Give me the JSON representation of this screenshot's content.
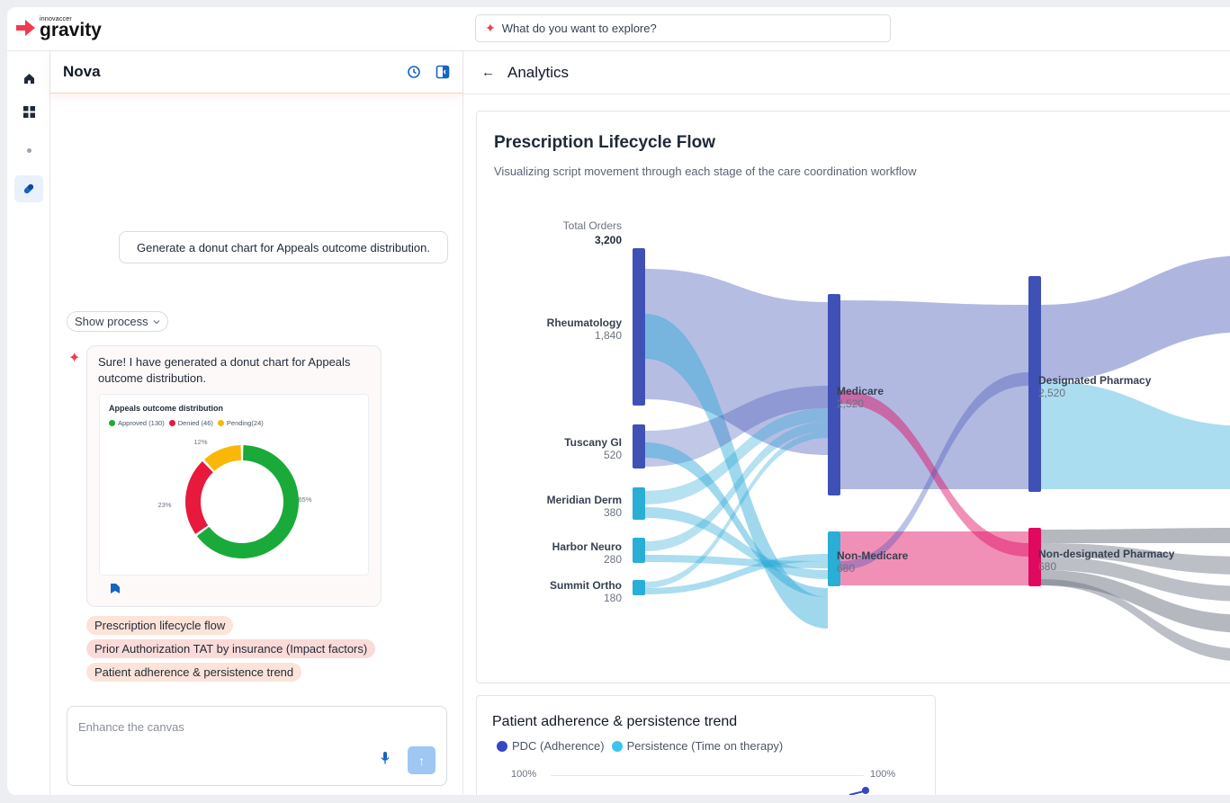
{
  "brand": {
    "small": "innovaccer",
    "name": "gravity"
  },
  "search": {
    "placeholder": "What do you want to explore?"
  },
  "rail": {
    "items": [
      "home-icon",
      "grid-icon",
      "dot-icon",
      "pill-icon"
    ],
    "active": "pill-icon"
  },
  "nova": {
    "title": "Nova",
    "user_message": "Generate a donut chart for Appeals outcome distribution.",
    "show_process": "Show process",
    "reply": "Sure! I have generated a donut chart for Appeals outcome distribution.",
    "suggestions": [
      "Prescription lifecycle flow",
      "Prior Authorization TAT by insurance (Impact factors)",
      "Patient adherence & persistence trend"
    ],
    "composer_placeholder": "Enhance the canvas"
  },
  "main": {
    "title": "Analytics"
  },
  "colors": {
    "accent": "#ef3b4f",
    "approved": "#1aaa3a",
    "denied": "#e8193c",
    "pending": "#f9b807",
    "medicare": "#3f51b5",
    "nonmedicare": "#2aa9d6",
    "pink": "#e0095f"
  },
  "chart_data": [
    {
      "type": "pie",
      "title": "Appeals outcome distribution",
      "legend": [
        "Approved (130)",
        "Denied (46)",
        "Pending(24)"
      ],
      "categories": [
        "Approved",
        "Denied",
        "Pending"
      ],
      "values": [
        130,
        46,
        24
      ],
      "labels": [
        "65%",
        "23%",
        "12%"
      ],
      "colors": [
        "#1aaa3a",
        "#e8193c",
        "#f9b807"
      ]
    },
    {
      "type": "sankey",
      "title": "Prescription Lifecycle Flow",
      "subtitle": "Visualizing script movement through each stage of the care coordination workflow",
      "total": {
        "label": "Total Orders",
        "value": "3,200"
      },
      "sources": [
        {
          "name": "Rheumatology",
          "value": "1,840"
        },
        {
          "name": "Tuscany GI",
          "value": "520"
        },
        {
          "name": "Meridian Derm",
          "value": "380"
        },
        {
          "name": "Harbor Neuro",
          "value": "280"
        },
        {
          "name": "Summit Ortho",
          "value": "180"
        }
      ],
      "middle": [
        {
          "name": "Medicare",
          "value": "2,520"
        },
        {
          "name": "Non-Medicare",
          "value": "680"
        }
      ],
      "targets": [
        {
          "name": "Designated Pharmacy",
          "value": "2,520"
        },
        {
          "name": "Non-designated Pharmacy",
          "value": "680"
        }
      ]
    },
    {
      "type": "line",
      "title": "Patient adherence & persistence trend",
      "series": [
        {
          "name": "PDC (Adherence)"
        },
        {
          "name": "Persistence (Time on therapy)"
        }
      ],
      "y_tick_left": "100%",
      "y_tick_right": "100%"
    }
  ]
}
